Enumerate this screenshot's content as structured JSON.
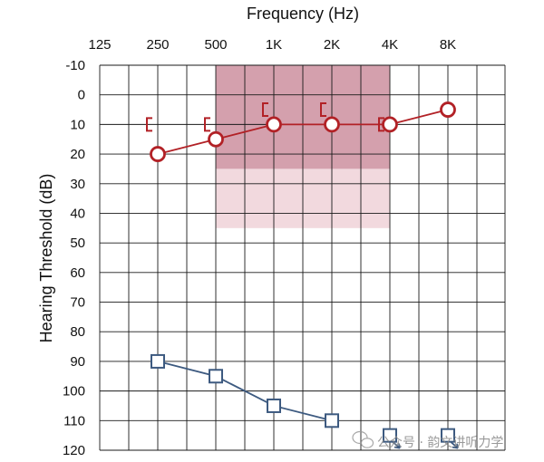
{
  "chart_data": {
    "type": "line",
    "title": "Frequency (Hz)",
    "ylabel": "Hearing Threshold (dB)",
    "x_ticks": [
      "125",
      "250",
      "500",
      "1K",
      "2K",
      "4K",
      "8K"
    ],
    "y_ticks": [
      -10,
      0,
      10,
      20,
      30,
      40,
      50,
      60,
      70,
      80,
      90,
      100,
      110,
      120
    ],
    "ylim": [
      -10,
      120
    ],
    "grid": true,
    "shaded_regions": [
      {
        "name": "region-dark",
        "x_from": "500",
        "x_to": "4K",
        "y_from": -10,
        "y_to": 25,
        "color": "#d4a0ad"
      },
      {
        "name": "region-light",
        "x_from": "500",
        "x_to": "4K",
        "y_from": 25,
        "y_to": 45,
        "color": "#f2d9de"
      }
    ],
    "series": [
      {
        "name": "air-conduction",
        "marker": "circle",
        "color": "#b22126",
        "line": true,
        "x": [
          "250",
          "500",
          "1K",
          "2K",
          "4K",
          "8K"
        ],
        "values": [
          20,
          15,
          10,
          10,
          10,
          5
        ]
      },
      {
        "name": "bone-conduction",
        "marker": "bracket",
        "color": "#b22126",
        "line": false,
        "x": [
          "250",
          "500",
          "1K",
          "2K",
          "4K"
        ],
        "values": [
          10,
          10,
          5,
          5,
          10
        ]
      },
      {
        "name": "uncomfortable-level",
        "marker": "square",
        "color": "#3d5a80",
        "line": true,
        "x": [
          "250",
          "500",
          "1K",
          "2K"
        ],
        "values": [
          90,
          95,
          105,
          110
        ]
      },
      {
        "name": "no-response",
        "marker": "square-arrow",
        "color": "#3d5a80",
        "line": false,
        "x": [
          "4K",
          "8K"
        ],
        "values": [
          115,
          115
        ]
      }
    ]
  },
  "watermark": "公众号 · 韵文讲听力学"
}
